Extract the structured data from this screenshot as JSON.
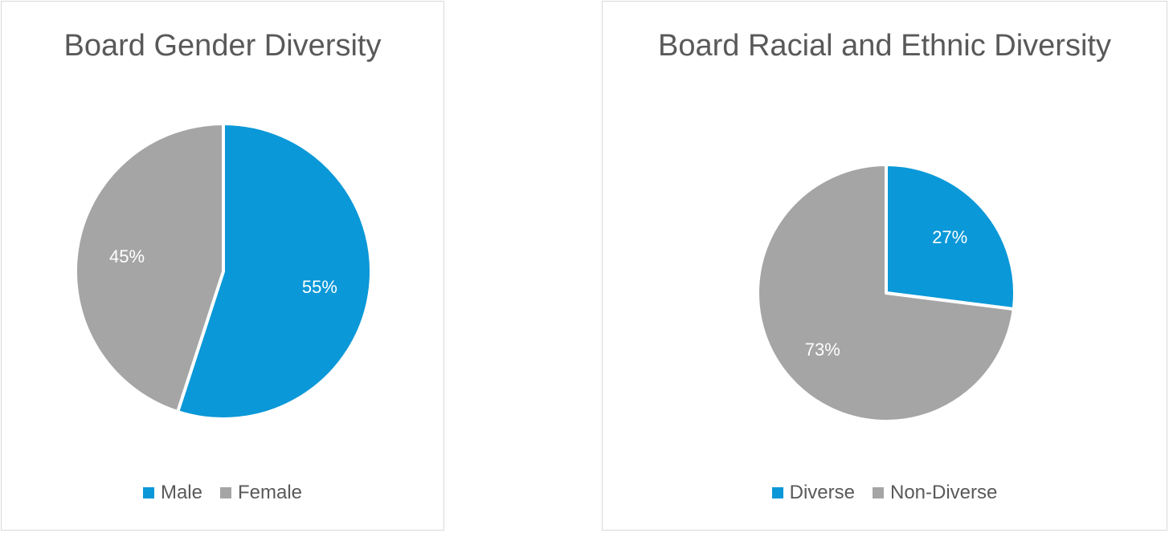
{
  "chart_data": [
    {
      "type": "pie",
      "title": "Board Gender Diversity",
      "categories": [
        "Male",
        "Female"
      ],
      "values": [
        55,
        45
      ],
      "data_labels": [
        "55%",
        "45%"
      ],
      "colors": [
        "#0a98d8",
        "#a5a5a5"
      ],
      "legend_position": "bottom"
    },
    {
      "type": "pie",
      "title": "Board Racial and Ethnic Diversity",
      "categories": [
        "Diverse",
        "Non-Diverse"
      ],
      "values": [
        27,
        73
      ],
      "data_labels": [
        "27%",
        "73%"
      ],
      "colors": [
        "#0a98d8",
        "#a5a5a5"
      ],
      "legend_position": "bottom"
    }
  ]
}
